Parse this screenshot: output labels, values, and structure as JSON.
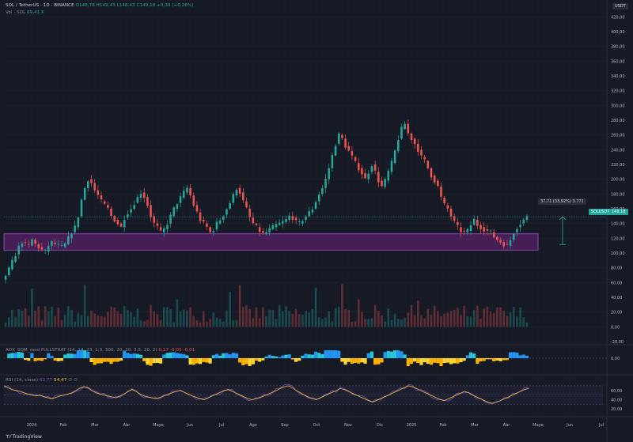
{
  "header": {
    "symbol": "SOL / TetherUS · 1D · BINANCE",
    "o": "O148,78",
    "h": "H149,43",
    "l": "L148,43",
    "c": "C149,18",
    "chg": "+0,39 (+0,26%)",
    "vol_label": "Vol · SOL",
    "vol_value": "69,41 K"
  },
  "currency_badge": "USDT",
  "price_badge": "SOLUSDT",
  "price_value": "149,18",
  "measure_label": "37,71 (33,92%) 3.771",
  "adx_title": "ADX_SQM_mod FULLSTRAT (14, 14, 23, 1,3, 300, 20, 20, 3,5, 20, 2)",
  "adx_vals": "0,17  -0,05  -0,01",
  "rsi_title": "RSI (14, close)",
  "rsi_v1": "63,77",
  "rsi_v2": "54,47",
  "rsi_extra": "∅ ∅",
  "branding": "TradingView",
  "chart_data": {
    "type": "candlestick",
    "x_labels": [
      "2024",
      "Feb",
      "Mar",
      "Abr",
      "Mayo",
      "Jun",
      "Jul",
      "Ago",
      "Sep",
      "Oct",
      "Nov",
      "Dic",
      "2025",
      "Feb",
      "Mar",
      "Abr",
      "Mayo",
      "Jun",
      "Jul"
    ],
    "price_ticks": [
      "420,00",
      "400,00",
      "380,00",
      "360,00",
      "340,00",
      "320,00",
      "300,00",
      "280,00",
      "260,00",
      "240,00",
      "220,00",
      "200,00",
      "180,00",
      "160,00",
      "140,00",
      "120,00",
      "100,00",
      "80,00",
      "60,00",
      "40,00",
      "20,00",
      "0,00",
      "-20,00"
    ],
    "adx_ticks": [
      "0,00"
    ],
    "rsi_ticks": [
      "60,00",
      "40,00",
      "20,00"
    ],
    "price_path": [
      70,
      78,
      88,
      98,
      108,
      115,
      112,
      110,
      118,
      112,
      108,
      104,
      102,
      110,
      114,
      112,
      110,
      108,
      112,
      120,
      128,
      135,
      150,
      172,
      188,
      200,
      195,
      185,
      178,
      170,
      165,
      160,
      150,
      145,
      140,
      135,
      148,
      155,
      160,
      168,
      175,
      182,
      176,
      165,
      150,
      140,
      135,
      128,
      132,
      140,
      150,
      160,
      168,
      175,
      182,
      188,
      178,
      165,
      155,
      145,
      140,
      135,
      128,
      132,
      140,
      145,
      152,
      160,
      168,
      178,
      188,
      182,
      170,
      160,
      148,
      140,
      135,
      130,
      126,
      128,
      132,
      135,
      138,
      140,
      142,
      145,
      150,
      148,
      142,
      140,
      145,
      150,
      155,
      160,
      170,
      180,
      188,
      200,
      215,
      232,
      248,
      260,
      255,
      245,
      238,
      230,
      222,
      215,
      208,
      200,
      210,
      220,
      210,
      198,
      190,
      198,
      210,
      222,
      238,
      255,
      268,
      275,
      262,
      255,
      248,
      240,
      230,
      225,
      215,
      205,
      198,
      190,
      175,
      165,
      160,
      150,
      142,
      135,
      130,
      128,
      130,
      138,
      145,
      138,
      135,
      132,
      130,
      128,
      122,
      118,
      115,
      112,
      110,
      118,
      128,
      135,
      140,
      145,
      149
    ],
    "price_range": [
      -20,
      430
    ],
    "zone": {
      "low": 104,
      "high": 126
    },
    "last_price": 149.18,
    "rsi_path": [
      70,
      66,
      62,
      60,
      58,
      55,
      52,
      50,
      48,
      50,
      46,
      44,
      42,
      45,
      48,
      50,
      52,
      55,
      60,
      65,
      68,
      66,
      60,
      55,
      52,
      50,
      48,
      46,
      44,
      48,
      52,
      58,
      62,
      58,
      52,
      48,
      46,
      44,
      42,
      45,
      48,
      52,
      55,
      58,
      60,
      56,
      52,
      48,
      45,
      42,
      40,
      44,
      48,
      52,
      56,
      60,
      62,
      58,
      54,
      50,
      46,
      42,
      40,
      42,
      45,
      48,
      52,
      56,
      60,
      64,
      68,
      70,
      66,
      60,
      55,
      50,
      46,
      42,
      40,
      44,
      48,
      52,
      56,
      60,
      64,
      62,
      58,
      54,
      50,
      46,
      42,
      38,
      35,
      38,
      42,
      46,
      50,
      54,
      58,
      62,
      66,
      70,
      68,
      64,
      60,
      56,
      52,
      48,
      44,
      40,
      38,
      42,
      46,
      50,
      54,
      58,
      55,
      50,
      46,
      42,
      38,
      34,
      32,
      35,
      38,
      42,
      46,
      50,
      54,
      58,
      62,
      64
    ],
    "rsi_range": [
      10,
      75
    ],
    "rsi_levels": [
      70,
      50,
      30
    ]
  }
}
